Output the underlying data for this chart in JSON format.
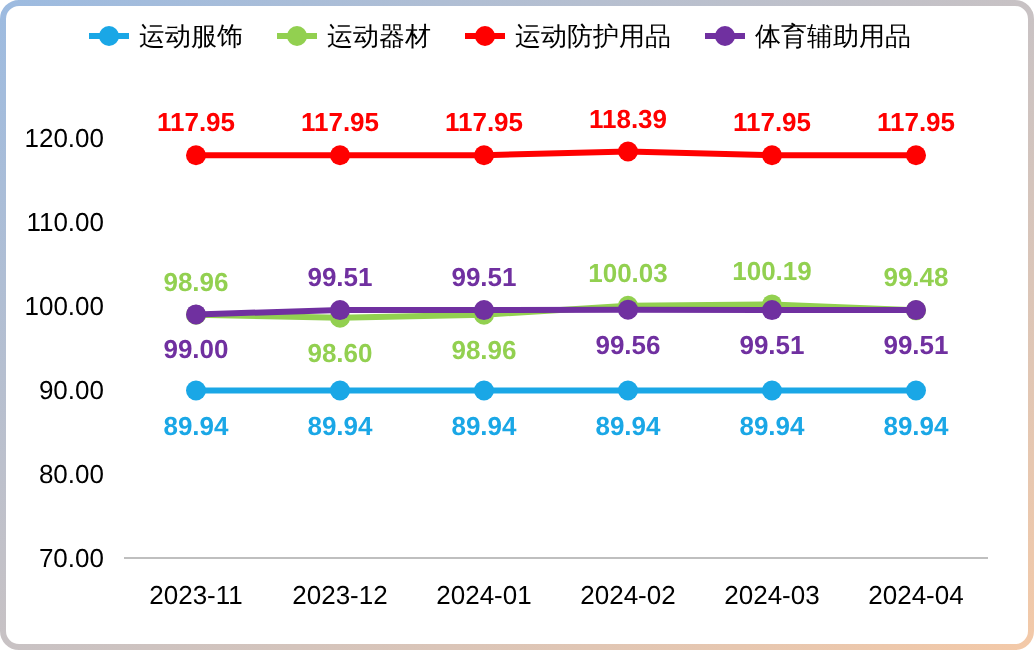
{
  "chart_data": {
    "type": "line",
    "categories": [
      "2023-11",
      "2023-12",
      "2024-01",
      "2024-02",
      "2024-03",
      "2024-04"
    ],
    "series": [
      {
        "name": "运动服饰",
        "color": "#1aa7e6",
        "values": [
          89.94,
          89.94,
          89.94,
          89.94,
          89.94,
          89.94
        ],
        "value_labels": [
          "89.94",
          "89.94",
          "89.94",
          "89.94",
          "89.94",
          "89.94"
        ]
      },
      {
        "name": "运动器材",
        "color": "#92d050",
        "values": [
          98.96,
          98.6,
          98.96,
          100.03,
          100.19,
          99.48
        ],
        "value_labels": [
          "98.96",
          "98.60",
          "98.96",
          "100.03",
          "100.19",
          "99.48"
        ]
      },
      {
        "name": "运动防护用品",
        "color": "#ff0000",
        "values": [
          117.95,
          117.95,
          117.95,
          118.39,
          117.95,
          117.95
        ],
        "value_labels": [
          "117.95",
          "117.95",
          "117.95",
          "118.39",
          "117.95",
          "117.95"
        ]
      },
      {
        "name": "体育辅助用品",
        "color": "#7030a0",
        "values": [
          99.0,
          99.51,
          99.51,
          99.56,
          99.51,
          99.51
        ],
        "value_labels": [
          "99.00",
          "99.51",
          "99.51",
          "99.56",
          "99.51",
          "99.51"
        ]
      }
    ],
    "ylim": [
      70,
      120
    ],
    "yticks": [
      {
        "value": 70,
        "label": "70.00"
      },
      {
        "value": 80,
        "label": "80.00"
      },
      {
        "value": 90,
        "label": "90.00"
      },
      {
        "value": 100,
        "label": "100.00"
      },
      {
        "value": 110,
        "label": "110.00"
      },
      {
        "value": 120,
        "label": "120.00"
      }
    ],
    "legend": "top",
    "marker": "circle",
    "line_style": "solid",
    "grid": false
  }
}
